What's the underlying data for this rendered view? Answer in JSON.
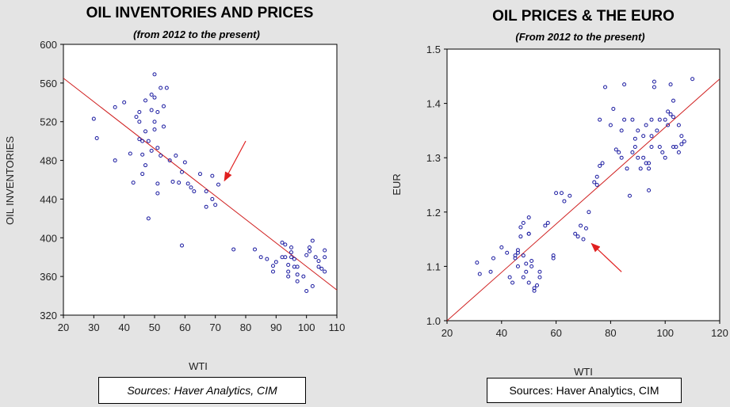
{
  "chart_data": [
    {
      "type": "scatter",
      "title": "OIL INVENTORIES AND PRICES",
      "subtitle": "(from 2012 to the present)",
      "xlabel": "WTI",
      "ylabel": "OIL INVENTORIES",
      "xlim": [
        20,
        110
      ],
      "ylim": [
        320,
        600
      ],
      "xticks": [
        "20",
        "30",
        "40",
        "50",
        "60",
        "70",
        "80",
        "90",
        "100",
        "110"
      ],
      "yticks": [
        "320",
        "360",
        "400",
        "440",
        "480",
        "520",
        "560",
        "600"
      ],
      "trendline": {
        "x": [
          20,
          110
        ],
        "y": [
          565,
          346
        ]
      },
      "points": [
        [
          30,
          523
        ],
        [
          31,
          503
        ],
        [
          37,
          480
        ],
        [
          37,
          535
        ],
        [
          40,
          540
        ],
        [
          42,
          487
        ],
        [
          43,
          457
        ],
        [
          44,
          525
        ],
        [
          45,
          520
        ],
        [
          45,
          530
        ],
        [
          45,
          502
        ],
        [
          46,
          500
        ],
        [
          46,
          486
        ],
        [
          46,
          466
        ],
        [
          47,
          542
        ],
        [
          47,
          510
        ],
        [
          47,
          475
        ],
        [
          48,
          420
        ],
        [
          48,
          500
        ],
        [
          49,
          490
        ],
        [
          49,
          532
        ],
        [
          49,
          548
        ],
        [
          50,
          569
        ],
        [
          50,
          520
        ],
        [
          50,
          512
        ],
        [
          50,
          545
        ],
        [
          51,
          530
        ],
        [
          51,
          493
        ],
        [
          51,
          456
        ],
        [
          51,
          446
        ],
        [
          52,
          555
        ],
        [
          52,
          485
        ],
        [
          53,
          536
        ],
        [
          53,
          515
        ],
        [
          54,
          555
        ],
        [
          55,
          480
        ],
        [
          56,
          458
        ],
        [
          57,
          485
        ],
        [
          58,
          457
        ],
        [
          59,
          468
        ],
        [
          59,
          392
        ],
        [
          60,
          478
        ],
        [
          61,
          456
        ],
        [
          62,
          452
        ],
        [
          63,
          448
        ],
        [
          65,
          466
        ],
        [
          67,
          448
        ],
        [
          67,
          432
        ],
        [
          69,
          464
        ],
        [
          69,
          440
        ],
        [
          70,
          434
        ],
        [
          71,
          455
        ],
        [
          76,
          388
        ],
        [
          83,
          388
        ],
        [
          85,
          380
        ],
        [
          87,
          378
        ],
        [
          89,
          371
        ],
        [
          89,
          365
        ],
        [
          90,
          375
        ],
        [
          92,
          395
        ],
        [
          92,
          380
        ],
        [
          93,
          393
        ],
        [
          93,
          380
        ],
        [
          94,
          365
        ],
        [
          94,
          372
        ],
        [
          94,
          360
        ],
        [
          95,
          390
        ],
        [
          95,
          385
        ],
        [
          95,
          380
        ],
        [
          96,
          370
        ],
        [
          96,
          378
        ],
        [
          97,
          370
        ],
        [
          97,
          362
        ],
        [
          97,
          355
        ],
        [
          99,
          360
        ],
        [
          100,
          382
        ],
        [
          100,
          345
        ],
        [
          101,
          390
        ],
        [
          101,
          386
        ],
        [
          102,
          397
        ],
        [
          102,
          350
        ],
        [
          103,
          380
        ],
        [
          104,
          370
        ],
        [
          104,
          376
        ],
        [
          105,
          368
        ],
        [
          106,
          380
        ],
        [
          106,
          365
        ],
        [
          106,
          387
        ]
      ],
      "arrow_color": "#e02020",
      "series_color": "#1a1aa0",
      "trend_color": "#d02020"
    },
    {
      "type": "scatter",
      "title": "OIL PRICES & THE EURO",
      "subtitle": "(From 2012 to the present)",
      "xlabel": "WTI",
      "ylabel": "EUR",
      "xlim": [
        20,
        120
      ],
      "ylim": [
        1.0,
        1.5
      ],
      "xticks": [
        "20",
        "40",
        "60",
        "80",
        "100",
        "120"
      ],
      "yticks": [
        "1.0",
        "1.1",
        "1.2",
        "1.3",
        "1.4",
        "1.5"
      ],
      "trendline": {
        "x": [
          20,
          120
        ],
        "y": [
          1.0,
          1.445
        ]
      },
      "points": [
        [
          31,
          1.107
        ],
        [
          32,
          1.086
        ],
        [
          36,
          1.09
        ],
        [
          37,
          1.115
        ],
        [
          40,
          1.135
        ],
        [
          42,
          1.125
        ],
        [
          43,
          1.08
        ],
        [
          44,
          1.07
        ],
        [
          45,
          1.12
        ],
        [
          45,
          1.115
        ],
        [
          46,
          1.13
        ],
        [
          46,
          1.125
        ],
        [
          46,
          1.1
        ],
        [
          47,
          1.155
        ],
        [
          47,
          1.172
        ],
        [
          48,
          1.12
        ],
        [
          48,
          1.18
        ],
        [
          48,
          1.08
        ],
        [
          49,
          1.105
        ],
        [
          49,
          1.09
        ],
        [
          50,
          1.19
        ],
        [
          50,
          1.16
        ],
        [
          50,
          1.16
        ],
        [
          50,
          1.07
        ],
        [
          51,
          1.11
        ],
        [
          51,
          1.1
        ],
        [
          52,
          1.06
        ],
        [
          52,
          1.055
        ],
        [
          53,
          1.065
        ],
        [
          54,
          1.08
        ],
        [
          54,
          1.09
        ],
        [
          56,
          1.175
        ],
        [
          57,
          1.18
        ],
        [
          59,
          1.12
        ],
        [
          59,
          1.115
        ],
        [
          60,
          1.235
        ],
        [
          62,
          1.235
        ],
        [
          63,
          1.22
        ],
        [
          65,
          1.23
        ],
        [
          67,
          1.16
        ],
        [
          68,
          1.155
        ],
        [
          69,
          1.175
        ],
        [
          70,
          1.15
        ],
        [
          71,
          1.17
        ],
        [
          72,
          1.2
        ],
        [
          74,
          1.255
        ],
        [
          75,
          1.25
        ],
        [
          75,
          1.265
        ],
        [
          76,
          1.285
        ],
        [
          76,
          1.37
        ],
        [
          77,
          1.29
        ],
        [
          78,
          1.43
        ],
        [
          80,
          1.36
        ],
        [
          81,
          1.39
        ],
        [
          82,
          1.315
        ],
        [
          83,
          1.31
        ],
        [
          84,
          1.35
        ],
        [
          84,
          1.3
        ],
        [
          85,
          1.37
        ],
        [
          85,
          1.435
        ],
        [
          86,
          1.28
        ],
        [
          87,
          1.23
        ],
        [
          88,
          1.37
        ],
        [
          88,
          1.31
        ],
        [
          89,
          1.32
        ],
        [
          89,
          1.335
        ],
        [
          90,
          1.3
        ],
        [
          90,
          1.35
        ],
        [
          91,
          1.28
        ],
        [
          92,
          1.3
        ],
        [
          92,
          1.34
        ],
        [
          93,
          1.29
        ],
        [
          93,
          1.36
        ],
        [
          94,
          1.29
        ],
        [
          94,
          1.28
        ],
        [
          94,
          1.24
        ],
        [
          95,
          1.32
        ],
        [
          95,
          1.34
        ],
        [
          95,
          1.37
        ],
        [
          96,
          1.44
        ],
        [
          96,
          1.43
        ],
        [
          97,
          1.35
        ],
        [
          98,
          1.37
        ],
        [
          98,
          1.32
        ],
        [
          99,
          1.31
        ],
        [
          100,
          1.3
        ],
        [
          100,
          1.37
        ],
        [
          101,
          1.385
        ],
        [
          101,
          1.36
        ],
        [
          102,
          1.38
        ],
        [
          102,
          1.435
        ],
        [
          103,
          1.32
        ],
        [
          103,
          1.375
        ],
        [
          103,
          1.405
        ],
        [
          104,
          1.32
        ],
        [
          105,
          1.31
        ],
        [
          105,
          1.36
        ],
        [
          106,
          1.325
        ],
        [
          106,
          1.34
        ],
        [
          107,
          1.33
        ],
        [
          110,
          1.445
        ]
      ],
      "arrow_color": "#e02020",
      "series_color": "#1a1aa0",
      "trend_color": "#d02020"
    }
  ],
  "sources_left": "Sources:  Haver Analytics, CIM",
  "sources_right": "Sources:  Haver Analytics, CIM"
}
